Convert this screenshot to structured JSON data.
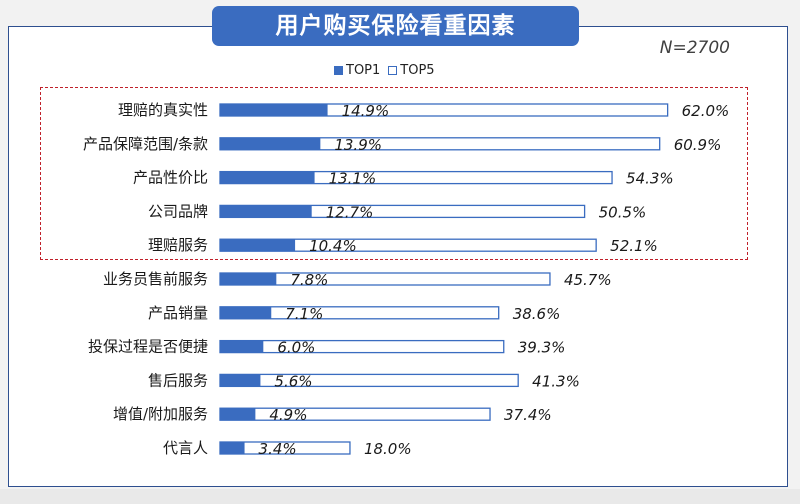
{
  "header": {
    "title": "用户购买保险看重因素",
    "n_label": "N=2700"
  },
  "colors": {
    "accent": "#3a6cc0",
    "frame": "#2e4f8f",
    "highlight_border": "#c0202a"
  },
  "chart_data": {
    "type": "bar",
    "orientation": "horizontal",
    "categories": [
      "理赔的真实性",
      "产品保障范围/条款",
      "产品性价比",
      "公司品牌",
      "理赔服务",
      "业务员售前服务",
      "产品销量",
      "投保过程是否便捷",
      "售后服务",
      "增值/附加服务",
      "代言人"
    ],
    "series": [
      {
        "name": "TOP1",
        "values": [
          14.9,
          13.9,
          13.1,
          12.7,
          10.4,
          7.8,
          7.1,
          6.0,
          5.6,
          4.9,
          3.4
        ],
        "style": "filled"
      },
      {
        "name": "TOP5",
        "values": [
          62.0,
          60.9,
          54.3,
          50.5,
          52.1,
          45.7,
          38.6,
          39.3,
          41.3,
          37.4,
          18.0
        ],
        "style": "outline"
      }
    ],
    "value_suffix": "%",
    "highlighted_categories": [
      "理赔的真实性",
      "产品保障范围/条款",
      "产品性价比",
      "公司品牌",
      "理赔服务"
    ],
    "legend_position": "top",
    "grid": false,
    "xlim": [
      0,
      100
    ]
  }
}
